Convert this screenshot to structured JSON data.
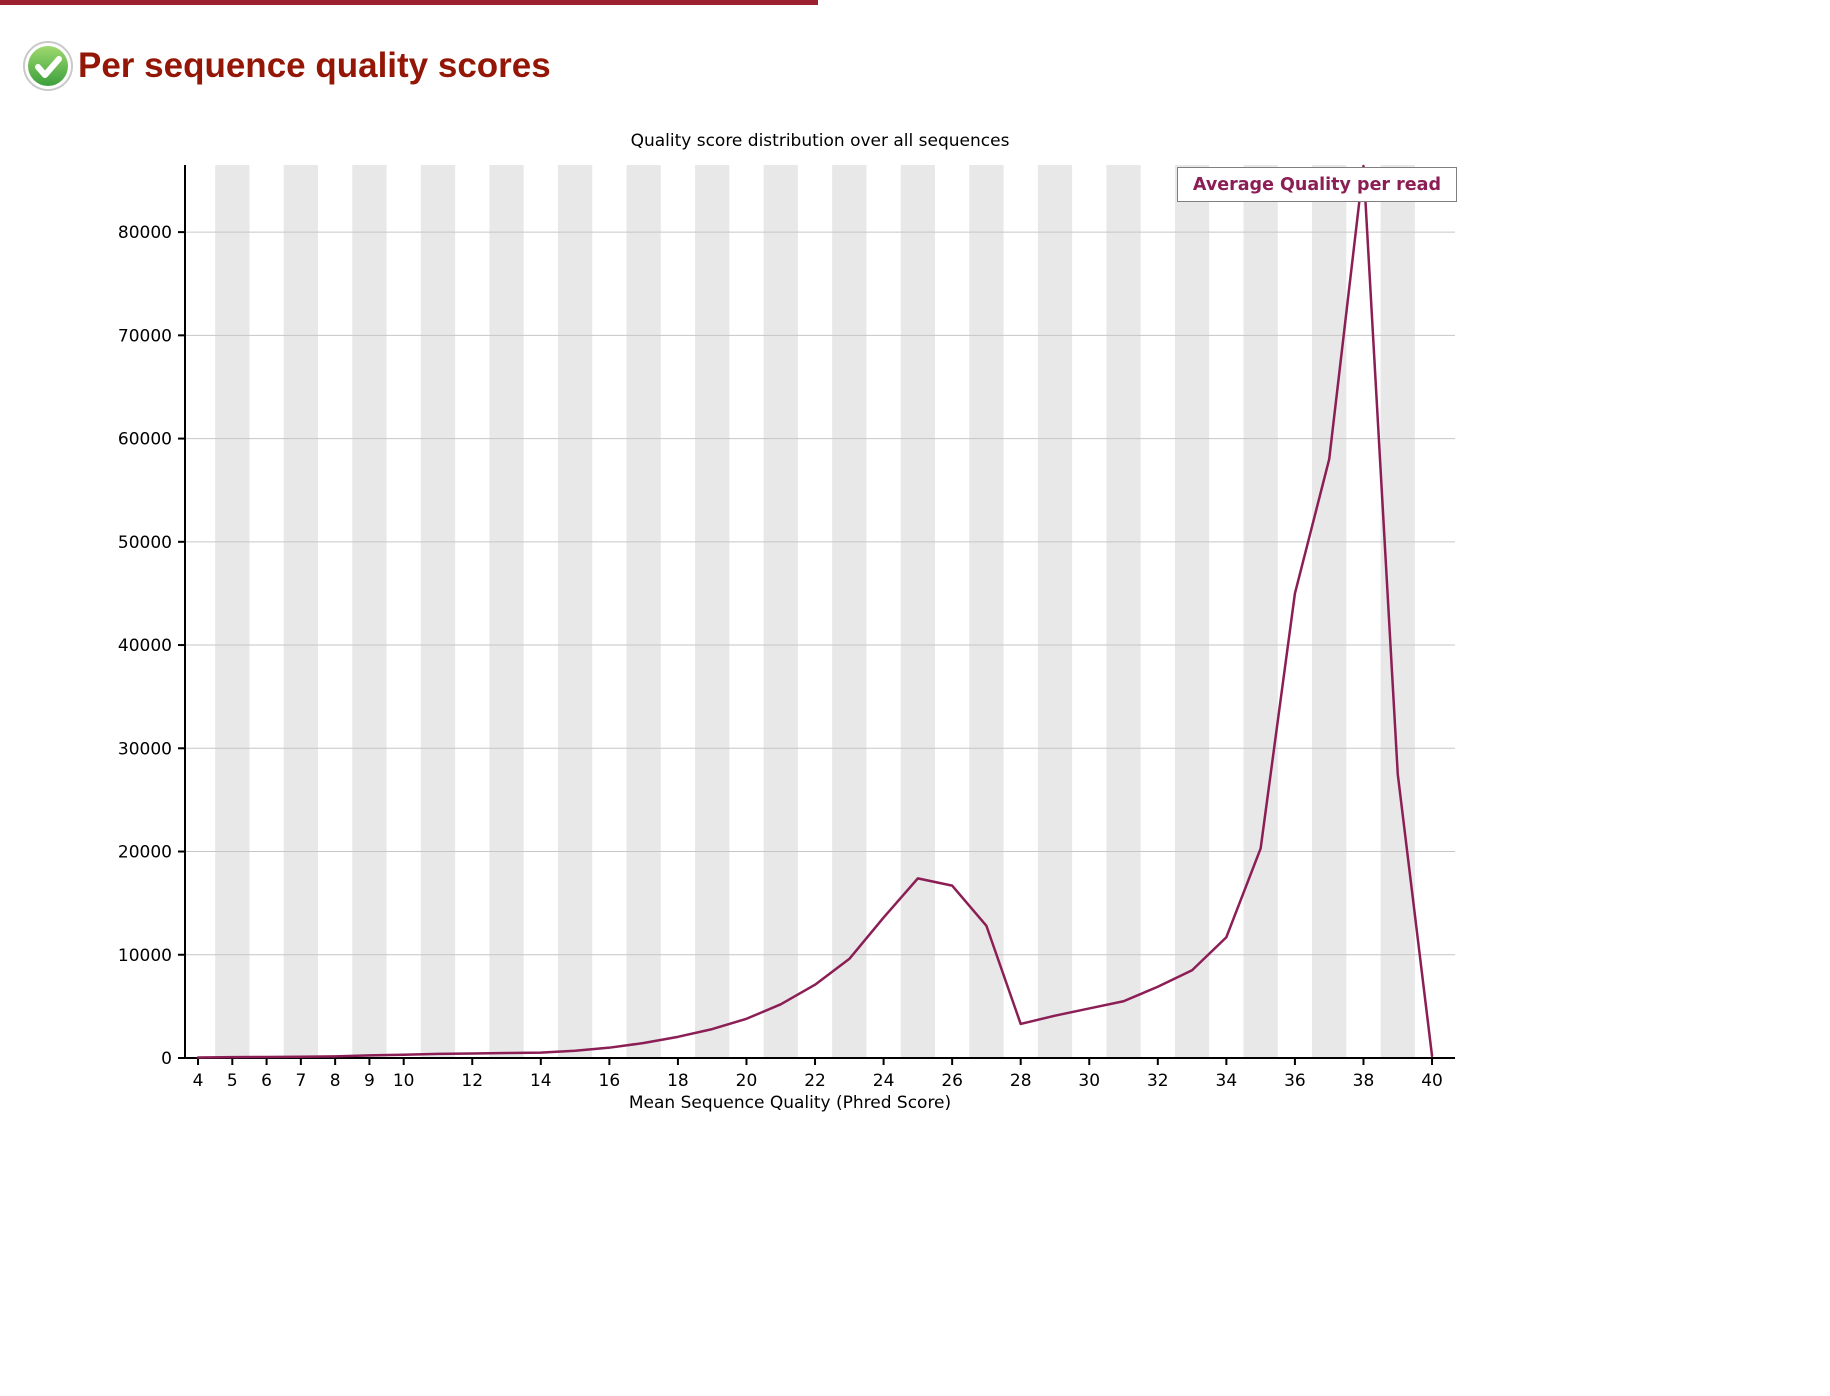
{
  "header": {
    "title": "Per sequence quality scores",
    "status": "pass"
  },
  "chart_data": {
    "type": "line",
    "title": "Quality score distribution over all sequences",
    "xlabel": "Mean Sequence Quality (Phred Score)",
    "ylabel": "",
    "legend": {
      "label": "Average Quality per read",
      "position": "top-right"
    },
    "x": [
      4,
      5,
      6,
      7,
      8,
      9,
      10,
      11,
      12,
      13,
      14,
      15,
      16,
      17,
      18,
      19,
      20,
      21,
      22,
      23,
      24,
      25,
      26,
      27,
      28,
      29,
      30,
      31,
      32,
      33,
      34,
      35,
      36,
      37,
      38,
      39,
      40
    ],
    "series": [
      {
        "name": "Average Quality per read",
        "color": "#8b1e55",
        "values": [
          50,
          80,
          100,
          120,
          160,
          250,
          320,
          400,
          430,
          480,
          520,
          700,
          1000,
          1450,
          2050,
          2800,
          3800,
          5200,
          7100,
          9600,
          13600,
          17400,
          16700,
          12800,
          3300,
          4100,
          4800,
          5500,
          6900,
          8500,
          11700,
          20300,
          45000,
          58000,
          86400,
          27500,
          200
        ]
      }
    ],
    "xlim": [
      4,
      40
    ],
    "ylim": [
      0,
      86500
    ],
    "x_tick_labels": [
      4,
      5,
      6,
      7,
      8,
      9,
      10,
      12,
      14,
      16,
      18,
      20,
      22,
      24,
      26,
      28,
      30,
      32,
      34,
      36,
      38,
      40
    ],
    "y_ticks": [
      0,
      10000,
      20000,
      30000,
      40000,
      50000,
      60000,
      70000,
      80000
    ],
    "grid": "horizontal-gridlines",
    "background_bands": {
      "centers": [
        5,
        7,
        9,
        11,
        13,
        15,
        17,
        19,
        21,
        23,
        25,
        27,
        29,
        31,
        33,
        35,
        37,
        39
      ],
      "width": 1
    }
  },
  "colors": {
    "heading": "#941606",
    "line": "#8b1e55",
    "band": "#e8e8e8",
    "grid": "#c6c6c6",
    "axis": "#000000"
  }
}
